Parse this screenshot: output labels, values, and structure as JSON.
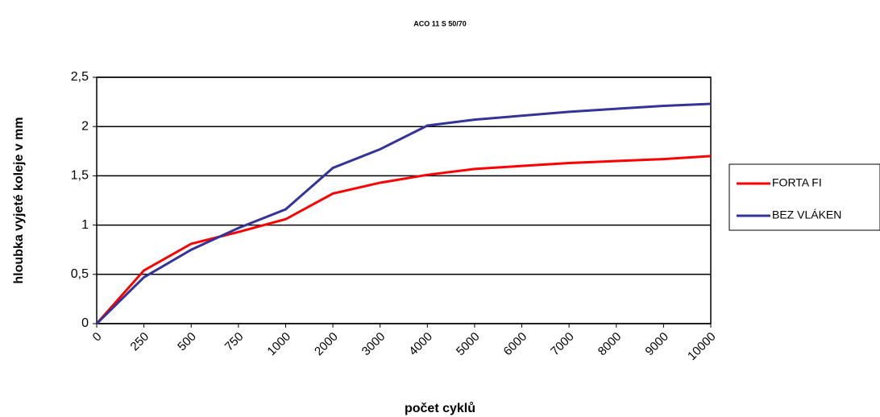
{
  "chart_data": {
    "type": "line",
    "title": "ACO 11 S 50/70",
    "x_label": "počet cyklů",
    "y_label": "hloubka vyjeté koleje v mm",
    "categories": [
      "0",
      "250",
      "500",
      "750",
      "1000",
      "2000",
      "3000",
      "4000",
      "5000",
      "6000",
      "7000",
      "8000",
      "9000",
      "10000"
    ],
    "series": [
      {
        "name": "FORTA FI",
        "color": "#ff0000",
        "values": [
          0,
          0.54,
          0.81,
          0.93,
          1.06,
          1.32,
          1.43,
          1.51,
          1.57,
          1.6,
          1.63,
          1.65,
          1.67,
          1.7
        ]
      },
      {
        "name": "BEZ VLÁKEN",
        "color": "#333399",
        "values": [
          0,
          0.47,
          0.75,
          0.97,
          1.16,
          1.58,
          1.77,
          2.01,
          2.07,
          2.11,
          2.15,
          2.18,
          2.21,
          2.23
        ]
      }
    ],
    "ylim": [
      0,
      2.5
    ],
    "yticks": [
      0,
      {
        "value": 0.5,
        "label": "0,5"
      },
      1,
      {
        "value": 1.5,
        "label": "1,5"
      },
      2,
      {
        "value": 2.5,
        "label": "2,5"
      }
    ],
    "grid": true,
    "legend": "right"
  }
}
